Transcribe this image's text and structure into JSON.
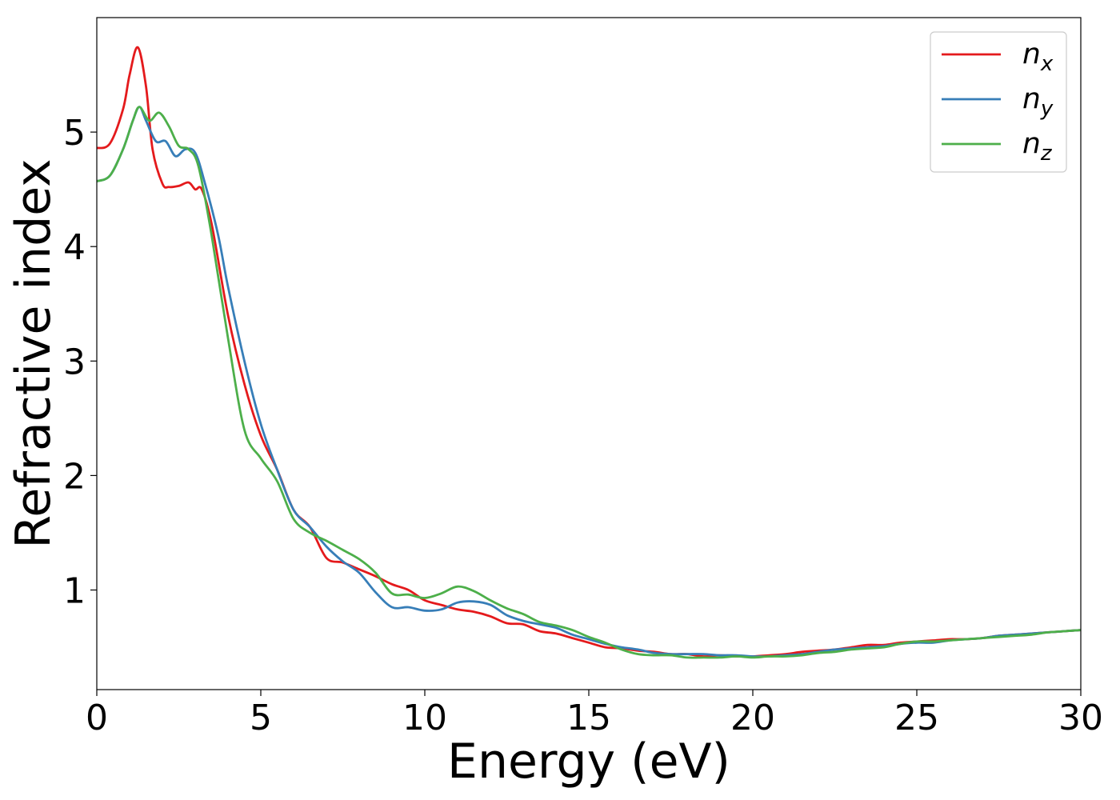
{
  "chart_data": {
    "type": "line",
    "xlabel": "Energy (eV)",
    "ylabel": "Refractive index",
    "xlim": [
      0,
      30
    ],
    "ylim": [
      0.13,
      6.0
    ],
    "xticks": [
      0,
      5,
      10,
      15,
      20,
      25,
      30
    ],
    "xtick_labels": [
      "0",
      "5",
      "10",
      "15",
      "20",
      "25",
      "30"
    ],
    "yticks": [
      1,
      2,
      3,
      4,
      5
    ],
    "ytick_labels": [
      "1",
      "2",
      "3",
      "4",
      "5"
    ],
    "grid": false,
    "legend_position": "top-right",
    "series": [
      {
        "name": "n",
        "subscript": "x",
        "color": "#e41a1c",
        "points": [
          [
            0,
            4.86
          ],
          [
            0.4,
            4.9
          ],
          [
            0.8,
            5.2
          ],
          [
            1.0,
            5.5
          ],
          [
            1.25,
            5.74
          ],
          [
            1.5,
            5.4
          ],
          [
            1.7,
            4.85
          ],
          [
            2.0,
            4.55
          ],
          [
            2.2,
            4.52
          ],
          [
            2.5,
            4.53
          ],
          [
            2.8,
            4.56
          ],
          [
            3.0,
            4.5
          ],
          [
            3.2,
            4.5
          ],
          [
            3.5,
            4.2
          ],
          [
            4.0,
            3.4
          ],
          [
            4.5,
            2.8
          ],
          [
            5.0,
            2.35
          ],
          [
            5.5,
            2.05
          ],
          [
            6.0,
            1.7
          ],
          [
            6.5,
            1.55
          ],
          [
            7.0,
            1.28
          ],
          [
            7.5,
            1.24
          ],
          [
            8.0,
            1.18
          ],
          [
            8.5,
            1.12
          ],
          [
            9.0,
            1.05
          ],
          [
            9.5,
            1.0
          ],
          [
            10.0,
            0.91
          ],
          [
            10.5,
            0.87
          ],
          [
            11.0,
            0.83
          ],
          [
            11.5,
            0.81
          ],
          [
            12.0,
            0.77
          ],
          [
            12.5,
            0.71
          ],
          [
            13.0,
            0.7
          ],
          [
            13.5,
            0.64
          ],
          [
            14.0,
            0.62
          ],
          [
            14.5,
            0.58
          ],
          [
            15.0,
            0.54
          ],
          [
            15.5,
            0.5
          ],
          [
            16.0,
            0.49
          ],
          [
            16.5,
            0.47
          ],
          [
            17.0,
            0.46
          ],
          [
            17.5,
            0.44
          ],
          [
            18.0,
            0.44
          ],
          [
            18.5,
            0.42
          ],
          [
            19.0,
            0.43
          ],
          [
            19.5,
            0.42
          ],
          [
            20.0,
            0.42
          ],
          [
            20.5,
            0.43
          ],
          [
            21.0,
            0.44
          ],
          [
            21.5,
            0.46
          ],
          [
            22.0,
            0.47
          ],
          [
            22.5,
            0.48
          ],
          [
            23.0,
            0.5
          ],
          [
            23.5,
            0.52
          ],
          [
            24.0,
            0.52
          ],
          [
            24.5,
            0.54
          ],
          [
            25.0,
            0.55
          ],
          [
            25.5,
            0.56
          ],
          [
            26.0,
            0.57
          ],
          [
            26.5,
            0.57
          ],
          [
            27.0,
            0.58
          ],
          [
            27.5,
            0.6
          ],
          [
            28.0,
            0.61
          ],
          [
            28.5,
            0.62
          ],
          [
            29.0,
            0.63
          ],
          [
            29.5,
            0.64
          ],
          [
            30.0,
            0.65
          ]
        ]
      },
      {
        "name": "n",
        "subscript": "y",
        "color": "#377eb8",
        "points": [
          [
            0,
            4.57
          ],
          [
            0.4,
            4.62
          ],
          [
            0.8,
            4.85
          ],
          [
            1.1,
            5.1
          ],
          [
            1.3,
            5.22
          ],
          [
            1.5,
            5.1
          ],
          [
            1.8,
            4.92
          ],
          [
            2.1,
            4.92
          ],
          [
            2.4,
            4.79
          ],
          [
            2.7,
            4.85
          ],
          [
            3.0,
            4.82
          ],
          [
            3.3,
            4.55
          ],
          [
            3.7,
            4.1
          ],
          [
            4.0,
            3.65
          ],
          [
            4.5,
            3.0
          ],
          [
            5.0,
            2.45
          ],
          [
            5.5,
            2.05
          ],
          [
            6.0,
            1.7
          ],
          [
            6.5,
            1.55
          ],
          [
            7.0,
            1.38
          ],
          [
            7.5,
            1.25
          ],
          [
            8.0,
            1.15
          ],
          [
            8.5,
            0.98
          ],
          [
            9.0,
            0.85
          ],
          [
            9.5,
            0.85
          ],
          [
            10.0,
            0.82
          ],
          [
            10.5,
            0.83
          ],
          [
            11.0,
            0.89
          ],
          [
            11.5,
            0.9
          ],
          [
            12.0,
            0.87
          ],
          [
            12.5,
            0.78
          ],
          [
            13.0,
            0.73
          ],
          [
            13.5,
            0.7
          ],
          [
            14.0,
            0.67
          ],
          [
            14.5,
            0.61
          ],
          [
            15.0,
            0.57
          ],
          [
            15.5,
            0.53
          ],
          [
            16.0,
            0.5
          ],
          [
            16.5,
            0.48
          ],
          [
            17.0,
            0.45
          ],
          [
            17.5,
            0.44
          ],
          [
            18.0,
            0.44
          ],
          [
            18.5,
            0.44
          ],
          [
            19.0,
            0.43
          ],
          [
            19.5,
            0.43
          ],
          [
            20.0,
            0.42
          ],
          [
            20.5,
            0.42
          ],
          [
            21.0,
            0.43
          ],
          [
            21.5,
            0.44
          ],
          [
            22.0,
            0.46
          ],
          [
            22.5,
            0.48
          ],
          [
            23.0,
            0.49
          ],
          [
            23.5,
            0.5
          ],
          [
            24.0,
            0.51
          ],
          [
            24.5,
            0.53
          ],
          [
            25.0,
            0.54
          ],
          [
            25.5,
            0.54
          ],
          [
            26.0,
            0.56
          ],
          [
            26.5,
            0.57
          ],
          [
            27.0,
            0.58
          ],
          [
            27.5,
            0.6
          ],
          [
            28.0,
            0.61
          ],
          [
            28.5,
            0.62
          ],
          [
            29.0,
            0.63
          ],
          [
            29.5,
            0.64
          ],
          [
            30.0,
            0.65
          ]
        ]
      },
      {
        "name": "n",
        "subscript": "z",
        "color": "#4daf4a",
        "points": [
          [
            0,
            4.57
          ],
          [
            0.4,
            4.62
          ],
          [
            0.8,
            4.85
          ],
          [
            1.1,
            5.1
          ],
          [
            1.3,
            5.22
          ],
          [
            1.6,
            5.1
          ],
          [
            1.9,
            5.17
          ],
          [
            2.2,
            5.05
          ],
          [
            2.5,
            4.88
          ],
          [
            2.8,
            4.85
          ],
          [
            3.1,
            4.7
          ],
          [
            3.5,
            4.1
          ],
          [
            4.0,
            3.2
          ],
          [
            4.5,
            2.4
          ],
          [
            5.0,
            2.15
          ],
          [
            5.5,
            1.95
          ],
          [
            6.0,
            1.62
          ],
          [
            6.5,
            1.5
          ],
          [
            7.0,
            1.43
          ],
          [
            7.5,
            1.35
          ],
          [
            8.0,
            1.27
          ],
          [
            8.5,
            1.15
          ],
          [
            9.0,
            0.97
          ],
          [
            9.5,
            0.96
          ],
          [
            10.0,
            0.93
          ],
          [
            10.5,
            0.97
          ],
          [
            11.0,
            1.03
          ],
          [
            11.5,
            0.99
          ],
          [
            12.0,
            0.91
          ],
          [
            12.5,
            0.84
          ],
          [
            13.0,
            0.79
          ],
          [
            13.5,
            0.72
          ],
          [
            14.0,
            0.69
          ],
          [
            14.5,
            0.65
          ],
          [
            15.0,
            0.59
          ],
          [
            15.5,
            0.54
          ],
          [
            16.0,
            0.48
          ],
          [
            16.5,
            0.44
          ],
          [
            17.0,
            0.43
          ],
          [
            17.5,
            0.43
          ],
          [
            18.0,
            0.41
          ],
          [
            18.5,
            0.41
          ],
          [
            19.0,
            0.41
          ],
          [
            19.5,
            0.42
          ],
          [
            20.0,
            0.41
          ],
          [
            20.5,
            0.42
          ],
          [
            21.0,
            0.42
          ],
          [
            21.5,
            0.43
          ],
          [
            22.0,
            0.45
          ],
          [
            22.5,
            0.46
          ],
          [
            23.0,
            0.48
          ],
          [
            23.5,
            0.49
          ],
          [
            24.0,
            0.5
          ],
          [
            24.5,
            0.53
          ],
          [
            25.0,
            0.55
          ],
          [
            25.5,
            0.55
          ],
          [
            26.0,
            0.56
          ],
          [
            26.5,
            0.57
          ],
          [
            27.0,
            0.58
          ],
          [
            27.5,
            0.59
          ],
          [
            28.0,
            0.6
          ],
          [
            28.5,
            0.61
          ],
          [
            29.0,
            0.63
          ],
          [
            29.5,
            0.64
          ],
          [
            30.0,
            0.65
          ]
        ]
      }
    ]
  }
}
